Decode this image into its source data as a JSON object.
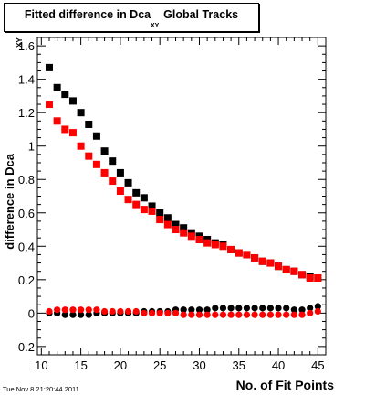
{
  "title": {
    "main": "Fitted difference in Dca",
    "sub": "XY",
    "suffix": "Global Tracks"
  },
  "timestamp": "Tue Nov  8 21:20:44 2011",
  "chart_data": {
    "type": "scatter",
    "title": "Fitted difference in Dca XY Global Tracks",
    "xlabel": "No. of Fit Points",
    "ylabel": "difference in Dca",
    "ylabel_sub": "XY",
    "xlim": [
      9.5,
      46
    ],
    "ylim": [
      -0.25,
      1.65
    ],
    "xticks": [
      10,
      15,
      20,
      25,
      30,
      35,
      40,
      45
    ],
    "yticks": [
      -0.2,
      0,
      0.2,
      0.4,
      0.6,
      0.8,
      1,
      1.2,
      1.4,
      1.6
    ],
    "ytick_labels": [
      "-0.2",
      "0",
      "0.2",
      "0.4",
      "0.6",
      "0.8",
      "1",
      "1.2",
      "1.4",
      "1.6"
    ],
    "grid": false,
    "series": [
      {
        "marker": "square",
        "color": "#000000",
        "x": [
          11,
          12,
          13,
          14,
          15,
          16,
          17,
          18,
          19,
          20,
          21,
          22,
          23,
          24,
          25,
          26,
          27,
          28,
          29,
          30,
          31,
          32,
          33,
          34,
          35,
          36,
          37,
          38,
          39,
          40,
          41,
          42,
          43,
          44,
          45
        ],
        "y": [
          1.47,
          1.35,
          1.31,
          1.27,
          1.2,
          1.13,
          1.06,
          0.97,
          0.91,
          0.84,
          0.78,
          0.72,
          0.69,
          0.64,
          0.6,
          0.57,
          0.53,
          0.51,
          0.48,
          0.46,
          0.44,
          0.42,
          0.41,
          0.38,
          0.36,
          0.35,
          0.33,
          0.31,
          0.3,
          0.28,
          0.26,
          0.25,
          0.23,
          0.22,
          0.21
        ]
      },
      {
        "marker": "square",
        "color": "#ff0000",
        "x": [
          11,
          12,
          13,
          14,
          15,
          16,
          17,
          18,
          19,
          20,
          21,
          22,
          23,
          24,
          25,
          26,
          27,
          28,
          29,
          30,
          31,
          32,
          33,
          34,
          35,
          36,
          37,
          38,
          39,
          40,
          41,
          42,
          43,
          44,
          45
        ],
        "y": [
          1.25,
          1.15,
          1.1,
          1.08,
          1.0,
          0.94,
          0.89,
          0.84,
          0.79,
          0.73,
          0.68,
          0.65,
          0.62,
          0.61,
          0.56,
          0.53,
          0.5,
          0.48,
          0.46,
          0.44,
          0.42,
          0.41,
          0.4,
          0.38,
          0.36,
          0.35,
          0.33,
          0.31,
          0.3,
          0.28,
          0.26,
          0.25,
          0.23,
          0.21,
          0.21
        ]
      },
      {
        "marker": "circle",
        "color": "#000000",
        "x": [
          11,
          12,
          13,
          14,
          15,
          16,
          17,
          18,
          19,
          20,
          21,
          22,
          23,
          24,
          25,
          26,
          27,
          28,
          29,
          30,
          31,
          32,
          33,
          34,
          35,
          36,
          37,
          38,
          39,
          40,
          41,
          42,
          43,
          44,
          45
        ],
        "y": [
          0.0,
          0.0,
          -0.01,
          -0.01,
          -0.01,
          -0.01,
          0.0,
          0.0,
          0.0,
          0.0,
          0.0,
          0.0,
          0.01,
          0.01,
          0.01,
          0.01,
          0.02,
          0.02,
          0.02,
          0.02,
          0.02,
          0.03,
          0.03,
          0.03,
          0.03,
          0.03,
          0.03,
          0.03,
          0.03,
          0.03,
          0.03,
          0.02,
          0.02,
          0.03,
          0.04
        ]
      },
      {
        "marker": "circle",
        "color": "#ff0000",
        "x": [
          11,
          12,
          13,
          14,
          15,
          16,
          17,
          18,
          19,
          20,
          21,
          22,
          23,
          24,
          25,
          26,
          27,
          28,
          29,
          30,
          31,
          32,
          33,
          34,
          35,
          36,
          37,
          38,
          39,
          40,
          41,
          42,
          43,
          44,
          45
        ],
        "y": [
          0.01,
          0.02,
          0.02,
          0.02,
          0.02,
          0.02,
          0.02,
          0.01,
          0.01,
          0.01,
          0.01,
          0.01,
          0.0,
          0.0,
          0.0,
          0.0,
          0.0,
          -0.01,
          -0.01,
          -0.01,
          -0.01,
          -0.01,
          -0.01,
          -0.01,
          -0.01,
          -0.01,
          -0.01,
          -0.01,
          -0.01,
          -0.01,
          -0.01,
          -0.01,
          -0.01,
          0.0,
          0.01
        ]
      }
    ]
  }
}
